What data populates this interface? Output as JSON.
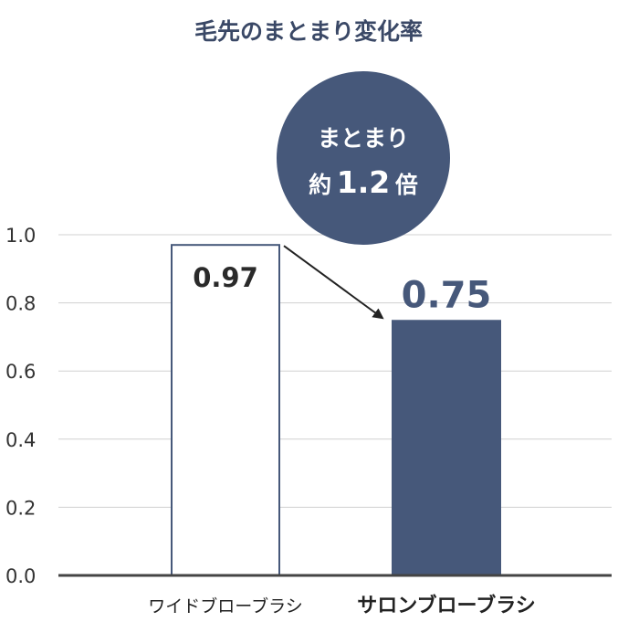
{
  "chart_data": {
    "type": "bar",
    "title": "毛先のまとまり変化率",
    "categories": [
      "ワイドブローブラシ",
      "サロンブローブラシ"
    ],
    "values": [
      0.97,
      0.75
    ],
    "value_labels": [
      "0.97",
      "0.75"
    ],
    "ylim": [
      0,
      1.0
    ],
    "yticks": [
      "0.0",
      "0.2",
      "0.4",
      "0.6",
      "0.8",
      "1.0"
    ],
    "grid": true,
    "callout": {
      "line1": "まとまり",
      "line2_prefix": "約",
      "line2_value": "1.2",
      "line2_suffix": "倍"
    }
  },
  "colors": {
    "accent": "#46587a",
    "title": "#3a4866",
    "text": "#333333",
    "grid": "#d0d0d0",
    "axis": "#444444",
    "bar_outline": "#46587a",
    "bar_plain_fill": "#ffffff"
  }
}
